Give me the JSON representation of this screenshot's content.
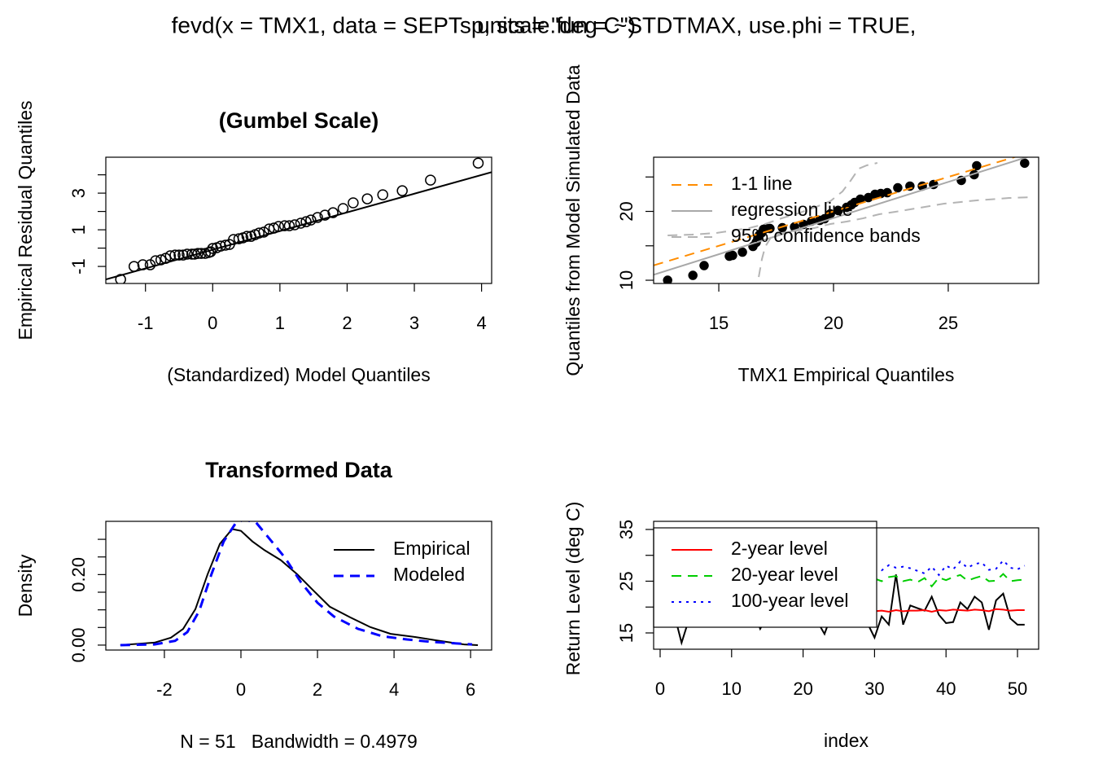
{
  "title_lines": [
    "fevd(x = TMX1, data = SEPTsp, scale.fun = ~STDTMAX, use.phi = TRUE,",
    "    units = \"deg C\")"
  ],
  "chart_data": [
    {
      "type": "scatter",
      "title": "(Gumbel Scale)",
      "x_label": "(Standardized) Model Quantiles",
      "y_label": "Empirical Residual Quantiles",
      "xlim": [
        -1.59,
        4.15
      ],
      "ylim": [
        -1.93,
        4.96
      ],
      "xticks": [
        -1,
        0,
        1,
        2,
        3,
        4
      ],
      "yticks": [
        -1,
        1,
        3
      ],
      "yticks_unlabeled": [
        0,
        2,
        4
      ],
      "series": [
        {
          "style": "points-open",
          "color": "#000000",
          "x": [
            -1.37,
            -1.17,
            -1.04,
            -0.93,
            -0.85,
            -0.77,
            -0.7,
            -0.63,
            -0.56,
            -0.5,
            -0.44,
            -0.38,
            -0.31,
            -0.27,
            -0.22,
            -0.17,
            -0.11,
            -0.06,
            -0.03,
            0,
            0.06,
            0.12,
            0.19,
            0.25,
            0.31,
            0.39,
            0.45,
            0.51,
            0.57,
            0.63,
            0.69,
            0.76,
            0.84,
            0.91,
            0.98,
            1.07,
            1.14,
            1.22,
            1.31,
            1.39,
            1.46,
            1.56,
            1.67,
            1.79,
            1.94,
            2.09,
            2.3,
            2.53,
            2.82,
            3.24,
            3.95
          ],
          "values": [
            -1.71,
            -1.0,
            -0.91,
            -0.91,
            -0.69,
            -0.64,
            -0.56,
            -0.42,
            -0.38,
            -0.38,
            -0.38,
            -0.33,
            -0.33,
            -0.33,
            -0.29,
            -0.29,
            -0.29,
            -0.24,
            -0.2,
            -0.02,
            0.02,
            0.11,
            0.16,
            0.2,
            0.47,
            0.51,
            0.56,
            0.64,
            0.64,
            0.73,
            0.82,
            0.87,
            1.04,
            1.09,
            1.18,
            1.22,
            1.22,
            1.27,
            1.36,
            1.44,
            1.53,
            1.67,
            1.8,
            1.93,
            2.16,
            2.47,
            2.69,
            2.91,
            3.13,
            3.71,
            4.64
          ]
        },
        {
          "style": "solid",
          "color": "#000000",
          "intercept": -0.09,
          "slope": 1.02
        }
      ]
    },
    {
      "type": "scatter",
      "x_label": "TMX1 Empirical Quantiles",
      "y_label": "Quantiles from Model Simulated Data",
      "xlim": [
        12.16,
        28.94
      ],
      "ylim": [
        9.53,
        27.87
      ],
      "xticks": [
        15,
        20,
        25
      ],
      "yticks": [
        10,
        20
      ],
      "yticks_unlabeled": [
        15,
        25
      ],
      "legend": "topleft",
      "series": [
        {
          "style": "points-filled",
          "color": "#000000",
          "x": [
            12.77,
            13.87,
            14.36,
            15.46,
            15.6,
            16.03,
            16.49,
            16.63,
            16.7,
            16.77,
            16.88,
            16.95,
            17.06,
            17.23,
            17.77,
            18.3,
            18.69,
            19.04,
            19.4,
            19.61,
            19.86,
            20.21,
            20.57,
            20.78,
            20.92,
            21.17,
            21.52,
            21.81,
            22.06,
            22.34,
            22.8,
            23.33,
            23.87,
            24.36,
            25.57,
            26.13,
            26.24,
            28.33
          ],
          "values": [
            10.0,
            10.71,
            12.13,
            13.49,
            13.61,
            14.08,
            14.91,
            15.5,
            16.09,
            16.57,
            16.92,
            17.4,
            17.51,
            17.51,
            17.63,
            17.75,
            18.11,
            18.58,
            18.7,
            18.93,
            19.64,
            20.12,
            20.59,
            20.95,
            21.3,
            21.78,
            22.01,
            22.49,
            22.6,
            22.72,
            23.43,
            23.67,
            23.67,
            23.91,
            24.5,
            25.33,
            26.63,
            27.0
          ]
        },
        {
          "name": "1-1 line",
          "style": "dashed",
          "color": "#ff8c00",
          "intercept": 0,
          "slope": 1
        },
        {
          "name": "regression line",
          "style": "solid",
          "color": "#a8a8a8",
          "intercept": -1.97,
          "slope": 1.05
        },
        {
          "name": "95% confidence bands",
          "style": "dashed",
          "color": "#b4b4b4",
          "lower": {
            "x": [
              16.74,
              16.88,
              17.02,
              17.3,
              17.73,
              18.44,
              19.15,
              19.86,
              20.57,
              21.28,
              21.99,
              22.7,
              23.76,
              24.82,
              26.24,
              27.66,
              28.72
            ],
            "values": [
              10.47,
              13.08,
              14.85,
              16.39,
              16.86,
              17.22,
              17.57,
              18.17,
              18.52,
              18.99,
              19.59,
              19.94,
              20.53,
              21.12,
              21.6,
              21.95,
              22.07
            ]
          },
          "upper": {
            "x": [
              12.77,
              13.83,
              14.89,
              15.6,
              16.31,
              17.02,
              17.73,
              18.44,
              19.15,
              19.86,
              20.39,
              20.74,
              21.1,
              21.45,
              21.91
            ],
            "values": [
              16.51,
              16.63,
              16.86,
              17.22,
              17.57,
              18.17,
              18.99,
              19.7,
              20.53,
              21.48,
              22.9,
              24.44,
              26.21,
              26.69,
              27.04
            ]
          }
        }
      ]
    },
    {
      "type": "line",
      "title": "Transformed Data",
      "x_label": "N = 51   Bandwidth = 0.4979",
      "y_label": "Density",
      "xlim": [
        -3.53,
        6.55
      ],
      "ylim": [
        -0.014,
        0.351
      ],
      "xticks": [
        -2,
        0,
        2,
        4,
        6
      ],
      "yticks": [
        {
          "value": 0,
          "label": "0.00"
        },
        {
          "value": 0.2,
          "label": "0.20"
        }
      ],
      "yticks_unlabeled": [
        0.05,
        0.1,
        0.15,
        0.25,
        0.3
      ],
      "legend": "topright",
      "series": [
        {
          "name": "Empirical",
          "style": "solid",
          "color": "#000000",
          "x": [
            -3.15,
            -2.26,
            -1.83,
            -1.51,
            -1.19,
            -0.87,
            -0.55,
            -0.23,
            0,
            0.3,
            0.62,
            1.04,
            1.47,
            1.89,
            2.32,
            2.85,
            3.38,
            3.91,
            4.55,
            5.19,
            5.83,
            6.19
          ],
          "values": [
            0,
            0.007,
            0.021,
            0.046,
            0.102,
            0.201,
            0.287,
            0.329,
            0.324,
            0.294,
            0.269,
            0.241,
            0.201,
            0.155,
            0.109,
            0.079,
            0.051,
            0.032,
            0.023,
            0.012,
            0.002,
            0
          ]
        },
        {
          "name": "Modeled",
          "style": "dashed",
          "color": "#0000ff",
          "x": [
            -3.15,
            -2.26,
            -1.72,
            -1.4,
            -1.09,
            -0.77,
            -0.45,
            -0.13,
            0.09,
            0.4,
            0.72,
            1.15,
            1.57,
            2.0,
            2.43,
            3.06,
            3.7,
            4.34,
            4.98,
            6.04
          ],
          "values": [
            0,
            0.002,
            0.012,
            0.037,
            0.097,
            0.201,
            0.294,
            0.347,
            0.356,
            0.347,
            0.305,
            0.248,
            0.178,
            0.12,
            0.081,
            0.046,
            0.025,
            0.016,
            0.009,
            0.002
          ]
        }
      ]
    },
    {
      "type": "line",
      "x_label": "index",
      "y_label": "Return Level (deg C)",
      "xlim": [
        -0.91,
        52.96
      ],
      "ylim": [
        11.85,
        35.31
      ],
      "xticks": [
        0,
        10,
        20,
        30,
        40,
        50
      ],
      "yticks": [
        15,
        25,
        35
      ],
      "yticks_unlabeled": [
        20,
        30
      ],
      "legend": "topleft",
      "legend_box": true,
      "x": [
        1,
        2,
        3,
        4,
        5,
        6,
        7,
        8,
        9,
        10,
        11,
        12,
        13,
        14,
        15,
        16,
        17,
        18,
        19,
        20,
        21,
        22,
        23,
        24,
        25,
        26,
        27,
        28,
        29,
        30,
        31,
        32,
        33,
        34,
        35,
        36,
        37,
        38,
        39,
        40,
        41,
        42,
        43,
        44,
        45,
        46,
        47,
        48,
        49,
        50,
        51
      ],
      "series": [
        {
          "style": "solid",
          "color": "#000000",
          "values": [
            16.1,
            18.5,
            13.1,
            17.5,
            19.0,
            18.2,
            20.1,
            17.0,
            19.5,
            18.8,
            17.4,
            16.4,
            19.6,
            15.8,
            18.3,
            17.9,
            20.4,
            19.1,
            16.8,
            18.0,
            19.3,
            17.2,
            14.8,
            18.6,
            20.7,
            17.7,
            19.0,
            18.4,
            16.9,
            14.1,
            18.2,
            16.6,
            26.3,
            16.6,
            20.3,
            19.8,
            19.3,
            22.0,
            18.5,
            16.9,
            17.1,
            20.9,
            19.6,
            22.0,
            20.9,
            15.6,
            21.3,
            22.6,
            17.8,
            16.6,
            16.6
          ]
        },
        {
          "name": "2-year level",
          "style": "solid",
          "color": "#ff0000",
          "values": [
            19.2,
            19.1,
            19.3,
            19.2,
            19.4,
            19.1,
            19.3,
            19.2,
            19.3,
            19.4,
            19.2,
            19.1,
            19.3,
            19.2,
            19.3,
            19.4,
            19.2,
            19.3,
            19.1,
            19.3,
            19.2,
            19.4,
            19.2,
            19.3,
            19.1,
            19.3,
            19.2,
            19.4,
            19.3,
            19.2,
            19.3,
            19.1,
            19.4,
            19.2,
            19.3,
            19.3,
            19.4,
            19.1,
            19.4,
            19.3,
            19.5,
            19.4,
            19.3,
            19.5,
            19.4,
            19.2,
            19.6,
            19.5,
            19.3,
            19.4,
            19.4
          ]
        },
        {
          "name": "20-year level",
          "style": "dashed",
          "color": "#00cd00",
          "values": [
            25.3,
            24.8,
            25.6,
            25.1,
            25.9,
            24.6,
            25.4,
            25.2,
            25.8,
            25.0,
            25.5,
            24.9,
            25.7,
            25.3,
            24.7,
            25.6,
            25.1,
            25.9,
            25.2,
            24.8,
            25.5,
            25.0,
            25.7,
            25.3,
            24.9,
            25.6,
            25.2,
            25.8,
            25.1,
            25.5,
            25.0,
            25.8,
            26.0,
            25.0,
            25.3,
            24.8,
            25.6,
            24.0,
            25.7,
            25.2,
            25.8,
            26.2,
            25.1,
            25.6,
            26.0,
            25.0,
            25.1,
            26.4,
            25.0,
            25.2,
            25.3
          ]
        },
        {
          "name": "100-year level",
          "style": "dotted",
          "color": "#0000ff",
          "values": [
            27.6,
            27.0,
            28.0,
            27.3,
            28.4,
            26.9,
            27.7,
            27.4,
            28.2,
            27.2,
            27.8,
            27.1,
            28.1,
            27.5,
            26.8,
            28.0,
            27.3,
            28.5,
            27.4,
            27.0,
            27.9,
            27.2,
            28.1,
            27.6,
            27.1,
            28.0,
            27.4,
            28.3,
            27.3,
            27.5,
            27.1,
            28.1,
            27.6,
            27.8,
            27.5,
            27.0,
            26.5,
            27.8,
            26.2,
            28.0,
            27.3,
            28.8,
            27.6,
            28.3,
            28.6,
            27.2,
            27.4,
            29.0,
            27.6,
            27.3,
            28.0
          ]
        }
      ]
    }
  ]
}
